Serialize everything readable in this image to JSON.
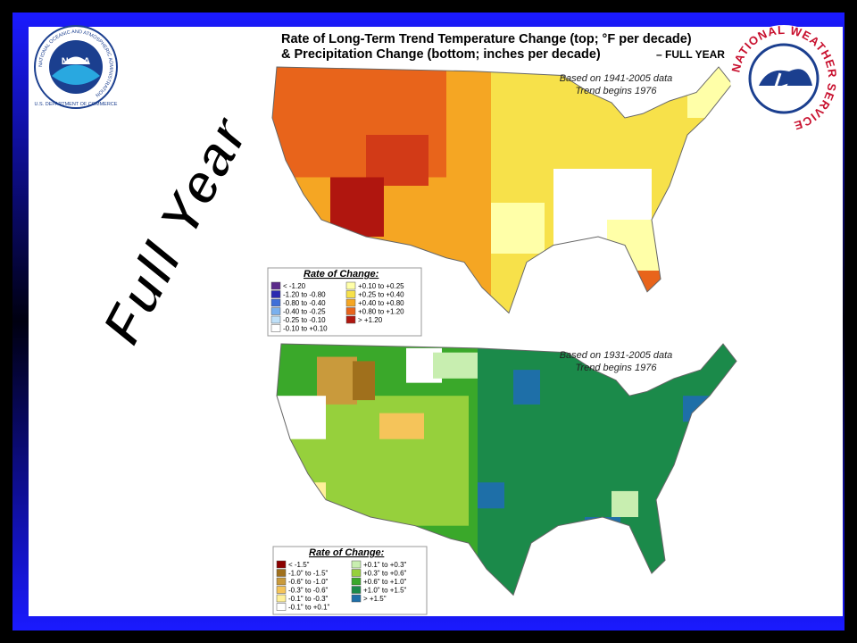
{
  "title": {
    "line1": "Rate of Long-Term Trend Temperature Change (top; °F per decade)",
    "line2": "& Precipitation Change (bottom; inches per decade)",
    "label": "– FULL YEAR"
  },
  "slide_label": "Full Year",
  "temperature_map": {
    "note": [
      "Based on 1941-2005 data",
      "Trend begins 1976"
    ],
    "legend": {
      "title": "Rate of Change:",
      "items": [
        {
          "label": "< -1.20",
          "color": "#5b2a8a"
        },
        {
          "label": "-1.20 to -0.80",
          "color": "#2b2bb0"
        },
        {
          "label": "-0.80 to -0.40",
          "color": "#3f6fd8"
        },
        {
          "label": "-0.40 to -0.25",
          "color": "#7ab0ee"
        },
        {
          "label": "-0.25 to -0.10",
          "color": "#bfe0f8"
        },
        {
          "label": "-0.10 to +0.10",
          "color": "#ffffff"
        },
        {
          "label": "+0.10 to +0.25",
          "color": "#ffffa8"
        },
        {
          "label": "+0.25 to +0.40",
          "color": "#f7e14a"
        },
        {
          "label": "+0.40 to +0.80",
          "color": "#f5a623"
        },
        {
          "label": "+0.80 to +1.20",
          "color": "#e8641b"
        },
        {
          "label": "> +1.20",
          "color": "#b0160f"
        }
      ]
    }
  },
  "precipitation_map": {
    "note": [
      "Based on 1931-2005 data",
      "Trend begins 1976"
    ],
    "legend": {
      "title": "Rate of Change:",
      "items": [
        {
          "label": "< -1.5\"",
          "color": "#8b0000"
        },
        {
          "label": "-1.0\" to -1.5\"",
          "color": "#a0701c"
        },
        {
          "label": "-0.6\" to -1.0\"",
          "color": "#c99a3c"
        },
        {
          "label": "-0.3\" to -0.6\"",
          "color": "#f5c45a"
        },
        {
          "label": "-0.1\" to -0.3\"",
          "color": "#fff09a"
        },
        {
          "label": "-0.1\" to +0.1\"",
          "color": "#ffffff"
        },
        {
          "label": "+0.1\" to +0.3\"",
          "color": "#c8eeb0"
        },
        {
          "label": "+0.3\" to +0.6\"",
          "color": "#96d03c"
        },
        {
          "label": "+0.6\" to +1.0\"",
          "color": "#3aa82a"
        },
        {
          "label": "+1.0\" to +1.5\"",
          "color": "#1b8a4a"
        },
        {
          "label": "> +1.5\"",
          "color": "#1e6fa8"
        }
      ]
    }
  },
  "logos": {
    "noaa": {
      "name": "NOAA",
      "ring": "NATIONAL OCEANIC AND ATMOSPHERIC ADMINISTRATION",
      "dept": "U.S. DEPARTMENT OF COMMERCE"
    },
    "nws": "NATIONAL WEATHER SERVICE"
  }
}
